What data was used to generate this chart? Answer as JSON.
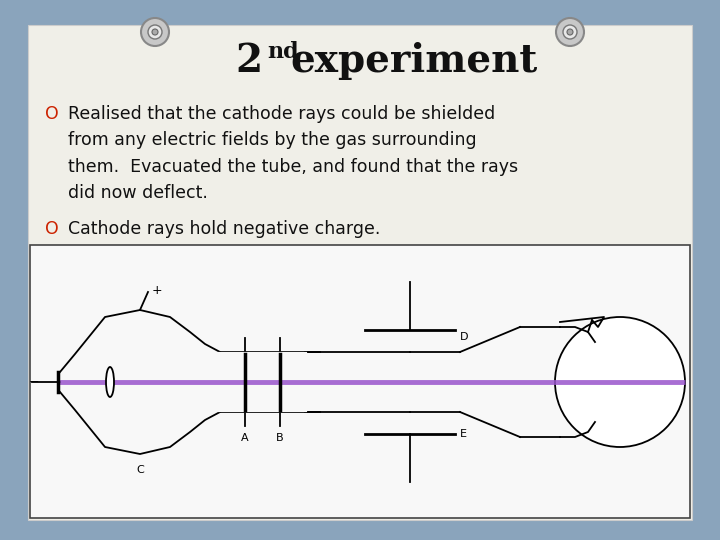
{
  "bg_color": "#8aa4bc",
  "paper_color": "#f0efe8",
  "title_main": "experiment",
  "title_super": "nd",
  "title_base": "2",
  "title_fontsize": 28,
  "title_super_fontsize": 16,
  "bullet_color": "#cc2200",
  "text1": "Realised that the cathode rays could be shielded\nfrom any electric fields by the gas surrounding\nthem.  Evacuated the tube, and found that the rays\ndid now deflect.",
  "text2": "Cathode rays hold negative charge.",
  "text_fontsize": 12.5,
  "text_color": "#111111",
  "diagram_bg": "#f8f8f8",
  "ray_color": "#9955cc",
  "pin_color": "#aaaaaa"
}
